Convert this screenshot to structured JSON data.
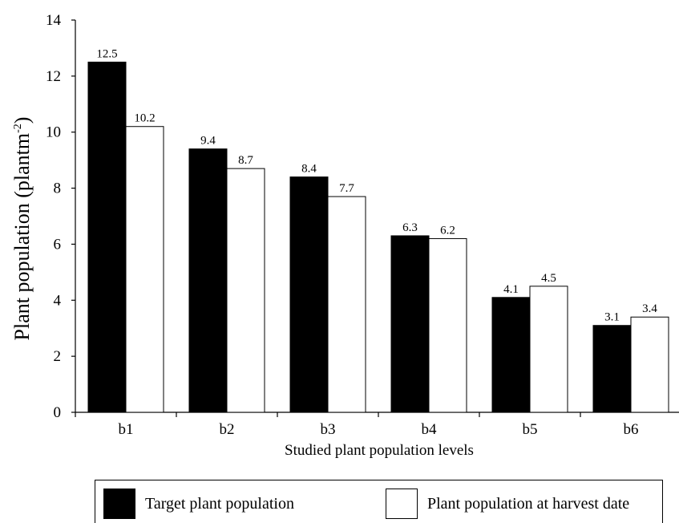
{
  "chart_data": {
    "type": "bar",
    "categories": [
      "b1",
      "b2",
      "b3",
      "b4",
      "b5",
      "b6"
    ],
    "series": [
      {
        "name": "Target plant population",
        "values": [
          12.5,
          9.4,
          8.4,
          6.3,
          4.1,
          3.1
        ],
        "color": "#000000"
      },
      {
        "name": "Plant population at harvest date",
        "values": [
          10.2,
          8.7,
          7.7,
          6.2,
          4.5,
          3.4
        ],
        "color": "#ffffff"
      }
    ],
    "data_labels": [
      [
        "12.5",
        "9.4",
        "8.4",
        "6.3",
        "4.1",
        "3.1"
      ],
      [
        "10.2",
        "8.7",
        "7.7",
        "6.2",
        "4.5",
        "3.4"
      ]
    ],
    "xlabel": "Studied plant population levels",
    "ylabel": "Plant population (plantm",
    "ylabel_superscript": "-2",
    "ylabel_close": ")",
    "ylim": [
      0,
      14
    ],
    "yticks": [
      "0",
      "2",
      "4",
      "6",
      "8",
      "10",
      "12",
      "14"
    ],
    "grid": false,
    "legend_position": "bottom"
  }
}
